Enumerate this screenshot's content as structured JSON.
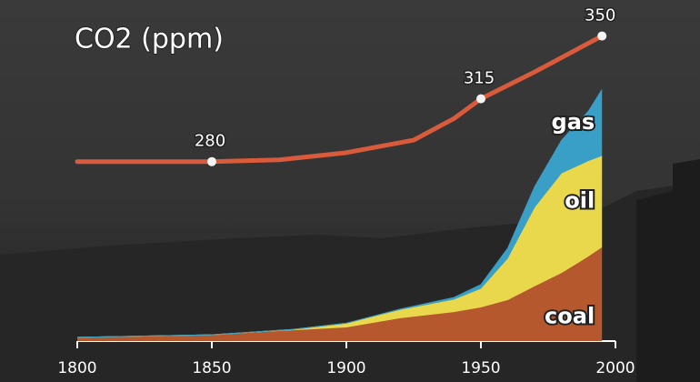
{
  "chart_data": [
    {
      "type": "line",
      "title": "CO2 (ppm)",
      "x": [
        1800,
        1850,
        1875,
        1900,
        1925,
        1940,
        1950,
        1970,
        1995
      ],
      "values": [
        280,
        280,
        281,
        285,
        292,
        304,
        315,
        330,
        350
      ],
      "color": "#d95b3b",
      "points": {
        "x": [
          1850,
          1950,
          1995
        ],
        "values": [
          280,
          315,
          350
        ]
      },
      "xlim": [
        1800,
        2000
      ],
      "ylim": [
        180,
        365
      ]
    },
    {
      "type": "stacked-area",
      "x": [
        1800,
        1850,
        1880,
        1900,
        1920,
        1940,
        1950,
        1960,
        1970,
        1980,
        1990,
        1995
      ],
      "series": [
        {
          "name": "coal",
          "color": "#b5582e",
          "values": [
            0.09,
            0.15,
            0.26,
            0.33,
            0.55,
            0.7,
            0.81,
            0.99,
            1.32,
            1.64,
            2.04,
            2.26
          ]
        },
        {
          "name": "oil",
          "color": "#e9d84c",
          "values": [
            0,
            0,
            0.02,
            0.1,
            0.2,
            0.3,
            0.45,
            1.0,
            1.9,
            2.4,
            2.3,
            2.2
          ]
        },
        {
          "name": "gas",
          "color": "#3a9fc6",
          "values": [
            0,
            0,
            0,
            0,
            0.02,
            0.05,
            0.1,
            0.25,
            0.5,
            0.8,
            1.2,
            1.6
          ]
        }
      ],
      "xlim": [
        1800,
        2000
      ],
      "ylim": [
        0,
        8
      ],
      "xticks": [
        1800,
        1850,
        1900,
        1950,
        2000
      ]
    }
  ]
}
